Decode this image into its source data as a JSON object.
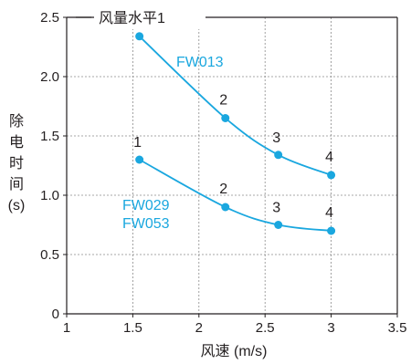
{
  "chart_data": {
    "type": "line",
    "title": "风量水平1",
    "xlabel": "风速 (m/s)",
    "ylabel": "除电时间 (s)",
    "xlim": [
      1,
      3.5
    ],
    "ylim": [
      0,
      2.5
    ],
    "x_ticks": [
      "1",
      "1.5",
      "2",
      "2.5",
      "3",
      "3.5"
    ],
    "y_ticks": [
      "0",
      "0.5",
      "1.0",
      "1.5",
      "2.0",
      "2.5"
    ],
    "grid": true,
    "series_color": "#1aa7df",
    "series": [
      {
        "name": "FW013",
        "x": [
          1.55,
          2.2,
          2.6,
          3.0
        ],
        "y": [
          2.34,
          1.65,
          1.34,
          1.17
        ],
        "point_labels": [
          "",
          "2",
          "3",
          "4"
        ]
      },
      {
        "name": "FW029 FW053",
        "name_lines": [
          "FW029",
          "FW053"
        ],
        "x": [
          1.55,
          2.2,
          2.6,
          3.0
        ],
        "y": [
          1.3,
          0.9,
          0.75,
          0.7
        ],
        "point_labels": [
          "1",
          "2",
          "3",
          "4"
        ]
      }
    ]
  }
}
